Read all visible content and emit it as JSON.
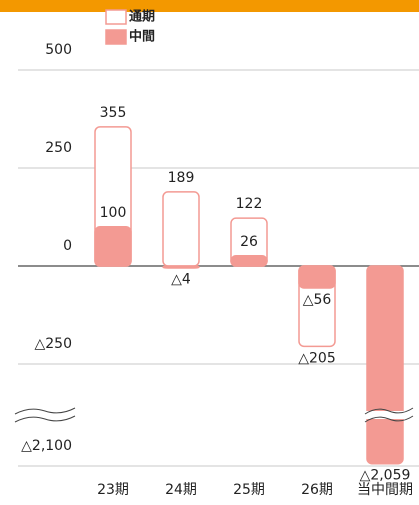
{
  "chart_data": {
    "type": "bar",
    "categories": [
      "23期",
      "24期",
      "25期",
      "26期",
      "当中間期"
    ],
    "series": [
      {
        "name": "通期",
        "color": "#f39a93",
        "style": "outline",
        "values": [
          355,
          189,
          122,
          -205,
          null
        ],
        "value_labels": [
          "355",
          "189",
          "122",
          "△205",
          null
        ]
      },
      {
        "name": "中間",
        "color": "#f39a93",
        "style": "filled",
        "values": [
          100,
          -4,
          26,
          -56,
          -2059
        ],
        "value_labels": [
          "100",
          "△4",
          "26",
          "△56",
          "△2,059"
        ]
      }
    ],
    "ylim": [
      -2100,
      500
    ],
    "yticks": [
      500,
      250,
      0,
      {
        "value": -250,
        "label": "△250"
      },
      {
        "value": -2100,
        "label": "△2,100"
      }
    ],
    "axis_break": true,
    "grid": true
  }
}
